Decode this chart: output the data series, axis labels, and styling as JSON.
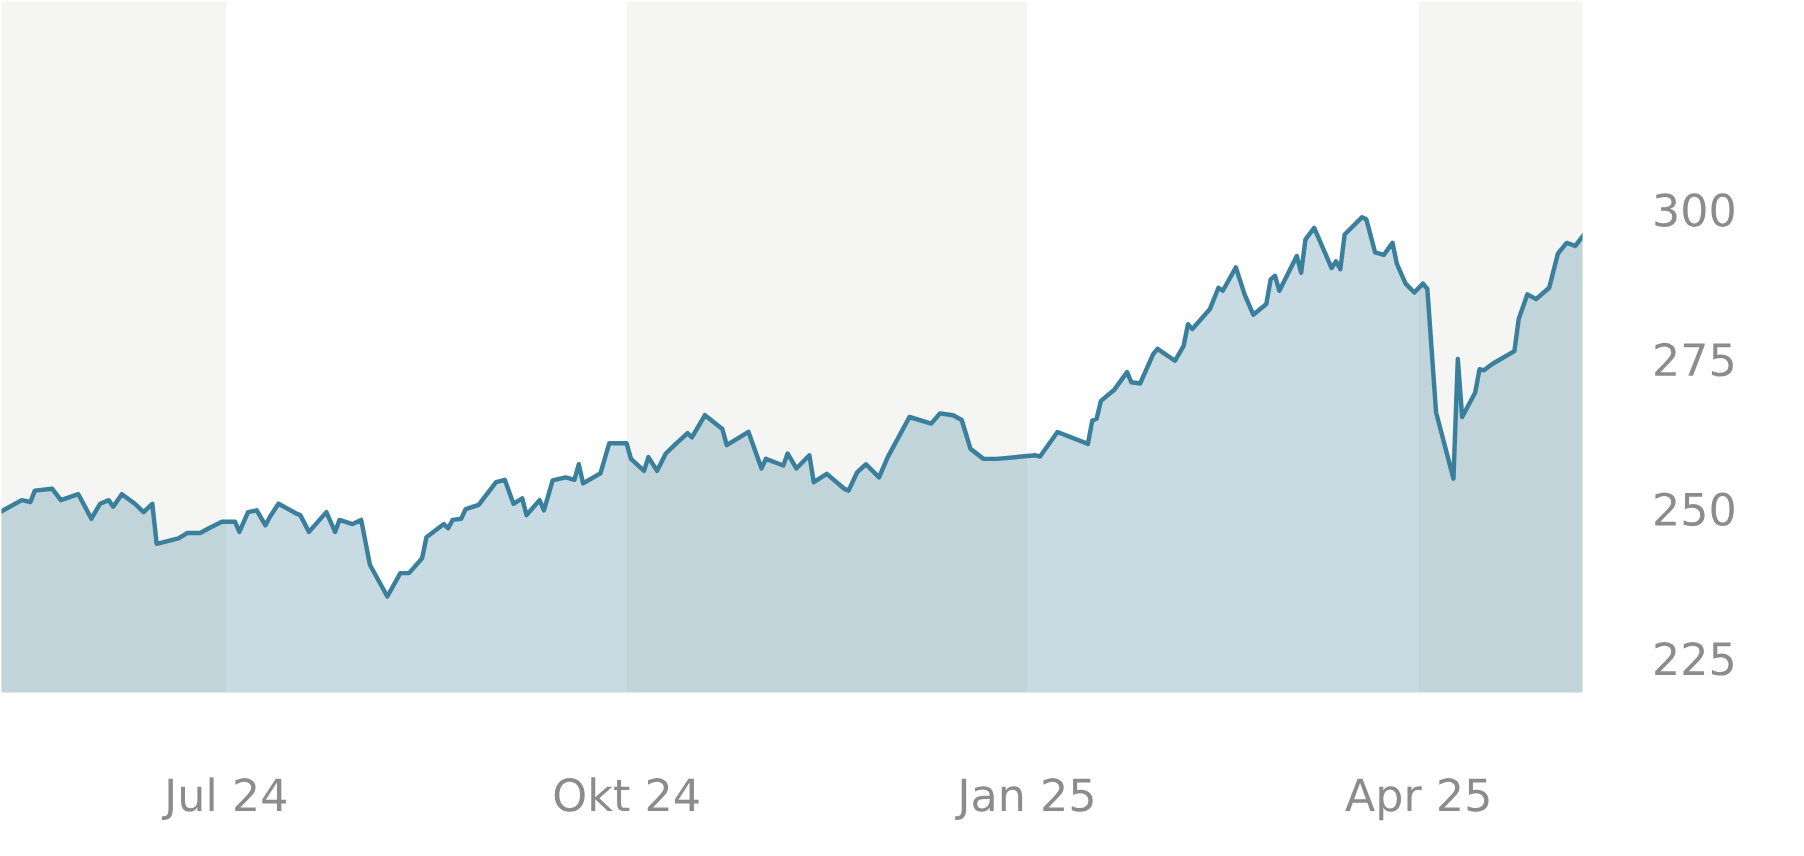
{
  "chart_data": {
    "type": "area",
    "x": [
      "2024-05-10",
      "2024-05-15",
      "2024-05-17",
      "2024-05-18",
      "2024-05-22",
      "2024-05-24",
      "2024-05-28",
      "2024-05-31",
      "2024-06-02",
      "2024-06-04",
      "2024-06-05",
      "2024-06-07",
      "2024-06-10",
      "2024-06-12",
      "2024-06-14",
      "2024-06-15",
      "2024-06-20",
      "2024-06-22",
      "2024-06-25",
      "2024-06-27",
      "2024-06-30",
      "2024-07-03",
      "2024-07-04",
      "2024-07-06",
      "2024-07-08",
      "2024-07-10",
      "2024-07-11",
      "2024-07-13",
      "2024-07-17",
      "2024-07-18",
      "2024-07-20",
      "2024-07-24",
      "2024-07-26",
      "2024-07-27",
      "2024-07-30",
      "2024-08-01",
      "2024-08-03",
      "2024-08-07",
      "2024-08-10",
      "2024-08-12",
      "2024-08-15",
      "2024-08-16",
      "2024-08-20",
      "2024-08-21",
      "2024-08-22",
      "2024-08-24",
      "2024-08-25",
      "2024-08-28",
      "2024-09-01",
      "2024-09-03",
      "2024-09-05",
      "2024-09-07",
      "2024-09-08",
      "2024-09-11",
      "2024-09-12",
      "2024-09-14",
      "2024-09-17",
      "2024-09-19",
      "2024-09-20",
      "2024-09-21",
      "2024-09-25",
      "2024-09-27",
      "2024-10-01",
      "2024-10-02",
      "2024-10-05",
      "2024-10-06",
      "2024-10-08",
      "2024-10-10",
      "2024-10-12",
      "2024-10-15",
      "2024-10-16",
      "2024-10-19",
      "2024-10-23",
      "2024-10-24",
      "2024-10-29",
      "2024-11-01",
      "2024-11-02",
      "2024-11-06",
      "2024-11-07",
      "2024-11-09",
      "2024-11-12",
      "2024-11-13",
      "2024-11-16",
      "2024-11-20",
      "2024-11-21",
      "2024-11-23",
      "2024-11-25",
      "2024-11-28",
      "2024-11-30",
      "2024-12-05",
      "2024-12-10",
      "2024-12-12",
      "2024-12-15",
      "2024-12-17",
      "2024-12-19",
      "2024-12-22",
      "2024-12-25",
      "2025-01-03",
      "2025-01-04",
      "2025-01-08",
      "2025-01-15",
      "2025-01-16",
      "2025-01-17",
      "2025-01-18",
      "2025-01-21",
      "2025-01-24",
      "2025-01-25",
      "2025-01-27",
      "2025-01-30",
      "2025-01-31",
      "2025-02-04",
      "2025-02-06",
      "2025-02-07",
      "2025-02-08",
      "2025-02-12",
      "2025-02-14",
      "2025-02-15",
      "2025-02-18",
      "2025-02-20",
      "2025-02-22",
      "2025-02-25",
      "2025-02-26",
      "2025-02-27",
      "2025-02-28",
      "2025-03-04",
      "2025-03-05",
      "2025-03-06",
      "2025-03-08",
      "2025-03-12",
      "2025-03-13",
      "2025-03-14",
      "2025-03-15",
      "2025-03-19",
      "2025-03-20",
      "2025-03-22",
      "2025-03-24",
      "2025-03-26",
      "2025-03-27",
      "2025-03-29",
      "2025-03-31",
      "2025-04-02",
      "2025-04-03",
      "2025-04-05",
      "2025-04-09",
      "2025-04-10",
      "2025-04-11",
      "2025-04-14",
      "2025-04-15",
      "2025-04-16",
      "2025-04-18",
      "2025-04-23",
      "2025-04-24",
      "2025-04-26",
      "2025-04-28",
      "2025-05-01",
      "2025-05-03",
      "2025-05-05",
      "2025-05-07",
      "2025-05-09"
    ],
    "series": [
      {
        "color": "#3a7f9c",
        "values": [
          249.4,
          251.4,
          251.1,
          253.0,
          253.3,
          251.4,
          252.4,
          248.3,
          250.8,
          251.4,
          250.3,
          252.4,
          250.8,
          249.4,
          250.8,
          244.1,
          245.0,
          245.9,
          245.9,
          246.7,
          247.8,
          247.8,
          246.1,
          249.4,
          249.7,
          247.2,
          248.6,
          250.8,
          249.2,
          248.9,
          246.1,
          249.4,
          246.1,
          248.1,
          247.4,
          248.1,
          240.6,
          235.3,
          239.2,
          239.2,
          241.7,
          245.2,
          247.4,
          246.7,
          248.1,
          248.3,
          249.9,
          250.6,
          254.4,
          254.8,
          250.8,
          251.7,
          248.9,
          251.4,
          249.7,
          254.7,
          255.2,
          254.8,
          257.4,
          254.2,
          255.9,
          260.9,
          260.9,
          258.3,
          256.3,
          258.6,
          256.3,
          259.2,
          260.6,
          262.6,
          261.9,
          265.6,
          263.3,
          260.6,
          262.8,
          256.7,
          258.3,
          257.2,
          259.2,
          256.7,
          258.9,
          254.4,
          255.8,
          253.3,
          253.0,
          256.1,
          257.4,
          255.2,
          258.6,
          265.3,
          264.2,
          265.9,
          265.6,
          264.8,
          260.0,
          258.3,
          258.3,
          258.9,
          258.7,
          262.8,
          260.8,
          264.7,
          265.0,
          268.0,
          269.8,
          272.8,
          271.1,
          270.9,
          275.8,
          276.7,
          274.7,
          277.2,
          280.8,
          280.0,
          283.3,
          286.9,
          286.4,
          290.3,
          285.8,
          282.4,
          284.2,
          288.3,
          288.9,
          286.4,
          292.2,
          289.4,
          295.0,
          296.9,
          290.2,
          291.3,
          290.0,
          295.8,
          298.7,
          298.3,
          292.8,
          292.4,
          294.4,
          290.9,
          287.6,
          286.1,
          287.6,
          286.7,
          266.1,
          255.0,
          275.0,
          265.3,
          269.4,
          273.3,
          273.1,
          274.2,
          276.3,
          281.7,
          285.8,
          285.0,
          286.9,
          292.6,
          294.4,
          293.9,
          295.8
        ]
      }
    ],
    "xlim": [
      "2024-05-10",
      "2025-05-09"
    ],
    "xticks": [
      {
        "value": "2024-07-01",
        "label": "Jul 24"
      },
      {
        "value": "2024-10-01",
        "label": "Okt 24"
      },
      {
        "value": "2025-01-01",
        "label": "Jan 25"
      },
      {
        "value": "2025-04-01",
        "label": "Apr 25"
      }
    ],
    "ylim": [
      219,
      335
    ],
    "yticks": [
      225,
      250,
      275,
      300
    ],
    "bands": [
      {
        "axis": "x",
        "from": "2024-05-10",
        "to": "2024-07-01",
        "color": "#f5f5f3"
      },
      {
        "axis": "x",
        "from": "2024-10-01",
        "to": "2025-01-01",
        "color": "#f5f5f3"
      },
      {
        "axis": "x",
        "from": "2025-04-01",
        "to": "2025-05-09",
        "color": "#f5f5f3"
      }
    ],
    "grid": false
  }
}
